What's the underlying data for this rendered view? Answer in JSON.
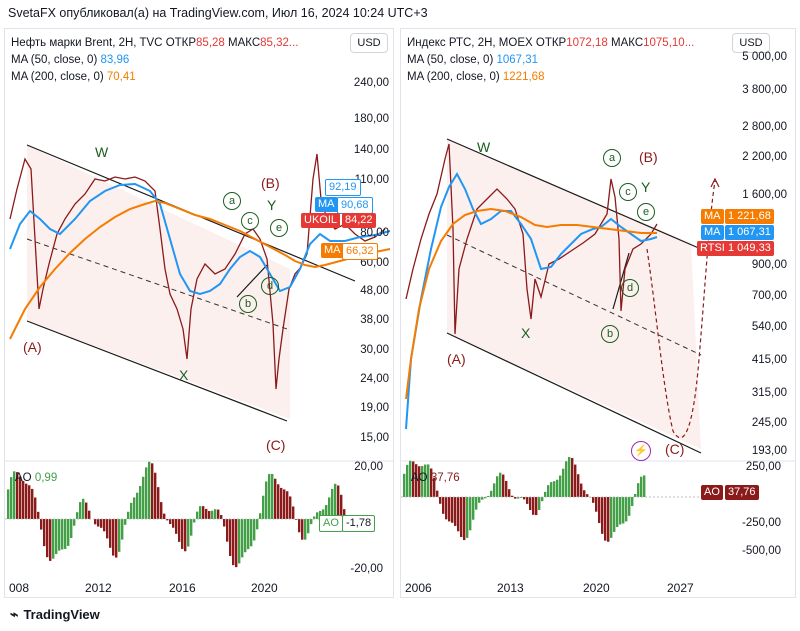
{
  "header": {
    "title": "SvetaFX опубликовал(а) на TradingView.com, Июл 16, 2024 10:24 UTC+3"
  },
  "footer": {
    "brand": "TradingView"
  },
  "left": {
    "legend_title": "Нефть марки Brent, 2H, TVC",
    "open_label": "ОТКР",
    "open_value": "85,28",
    "high_label": "МАКС",
    "high_value": "85,32...",
    "ma50_label": "MA (50, close, 0)",
    "ma50_value": "83,96",
    "ma200_label": "MA (200, close, 0)",
    "ma200_value": "70,41",
    "currency": "USD",
    "price_axis": [
      "240,00",
      "180,00",
      "140,00",
      "110,00",
      "80,00",
      "60,00",
      "48,00",
      "38,00",
      "30,00",
      "24,00",
      "19,00",
      "15,00"
    ],
    "ao_axis": [
      "20,00",
      "-20,00"
    ],
    "time_axis": [
      "008",
      "2012",
      "2016",
      "2020"
    ],
    "tags": {
      "ma_top_value": "92,19",
      "ma_mid_label": "MA",
      "ma_mid_value": "90,68",
      "symbol": "UKOIL",
      "symbol_value": "84,22",
      "ma_low_label": "MA",
      "ma_low_value": "66,32",
      "ao_label": "AO",
      "ao_value": "-1,78"
    },
    "ao_legend_label": "AO",
    "ao_legend_value": "0,99",
    "waves": {
      "A": "(A)",
      "B": "(B)",
      "C": "(C)",
      "W": "W",
      "X": "X",
      "Y": "Y",
      "a": "a",
      "b": "b",
      "c": "c",
      "d": "d",
      "e": "e"
    }
  },
  "right": {
    "legend_title": "Индекс РТС, 2H, MOEX",
    "open_label": "ОТКР",
    "open_value": "1072,18",
    "high_label": "МАКС",
    "high_value": "1075,10...",
    "ma50_label": "MA (50, close, 0)",
    "ma50_value": "1067,31",
    "ma200_label": "MA (200, close, 0)",
    "ma200_value": "1221,68",
    "currency": "USD",
    "price_axis": [
      "5 000,00",
      "3 800,00",
      "2 800,00",
      "2 200,00",
      "1 600,00",
      "900,00",
      "700,00",
      "540,00",
      "415,00",
      "315,00",
      "245,00",
      "193,00"
    ],
    "ao_axis": [
      "250,00",
      "-250,00",
      "-500,00"
    ],
    "time_axis": [
      "2006",
      "2013",
      "2020",
      "2027"
    ],
    "tags": {
      "ma_orange_label": "MA",
      "ma_orange_value": "1 221,68",
      "ma_blue_label": "MA",
      "ma_blue_value": "1 067,31",
      "symbol": "RTSI",
      "symbol_value": "1 049,33",
      "ao_label": "AO",
      "ao_value": "37,76"
    },
    "ao_legend_label": "AO",
    "ao_legend_value": "37,76",
    "waves": {
      "A": "(A)",
      "B": "(B)",
      "C": "(C)",
      "W": "W",
      "X": "X",
      "Y": "Y",
      "a": "a",
      "b": "b",
      "c": "c",
      "d": "d",
      "e": "e"
    }
  },
  "colors": {
    "ma50": "#2196f3",
    "ma200": "#f57c00",
    "up": "#43a047",
    "down": "#8b1a1a",
    "price_tag": "#e53935",
    "wave_label": "#8b1a1a",
    "channel_fill": "#fbe9e7"
  }
}
